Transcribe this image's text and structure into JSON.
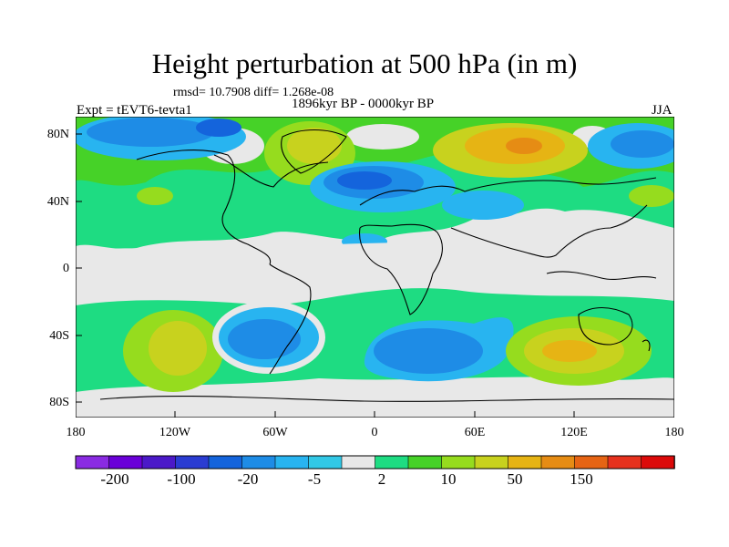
{
  "title": "Height perturbation at 500 hPa (in m)",
  "stats": "rmsd= 10.7908 diff= 1.268e-08",
  "period": "1896kyr BP - 0000kyr BP",
  "experiment": "Expt = tEVT6-tevta1",
  "season": "JJA",
  "axes": {
    "lat_ticks": [
      "80N",
      "40N",
      "0",
      "40S",
      "80S"
    ],
    "lon_ticks": [
      "180",
      "120W",
      "60W",
      "0",
      "60E",
      "120E",
      "180"
    ]
  },
  "colorbar": {
    "colors": [
      "#8a2be2",
      "#6a00d8",
      "#4b19c8",
      "#2a3cd2",
      "#1464dc",
      "#1e8ce6",
      "#28b4f0",
      "#32c8e6",
      "#e8e8e8",
      "#1edc82",
      "#46d228",
      "#96dc1e",
      "#c8d21e",
      "#e6b414",
      "#e68c14",
      "#e66414",
      "#e6321e",
      "#dc0a0a"
    ],
    "labels": [
      "-200",
      "-100",
      "-20",
      "-5",
      "2",
      "10",
      "50",
      "150"
    ]
  }
}
